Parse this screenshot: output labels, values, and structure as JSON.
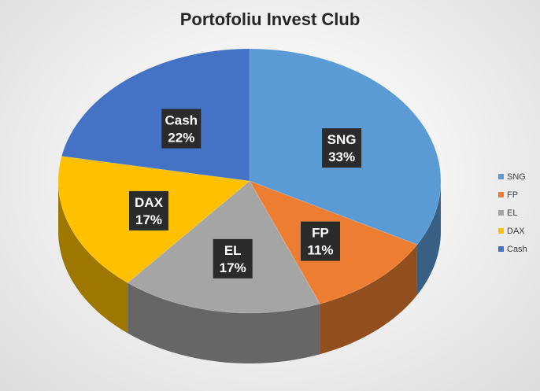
{
  "chart_data": {
    "type": "pie",
    "style": "3d",
    "title": "Portofoliu Invest Club",
    "categories": [
      "SNG",
      "FP",
      "EL",
      "DAX",
      "Cash"
    ],
    "values": [
      33,
      11,
      17,
      17,
      22
    ],
    "value_labels": [
      "33%",
      "11%",
      "17%",
      "17%",
      "22%"
    ],
    "colors": [
      "#5b9bd5",
      "#ed7d31",
      "#a5a5a5",
      "#ffc000",
      "#4472c4"
    ],
    "legend_position": "right"
  }
}
